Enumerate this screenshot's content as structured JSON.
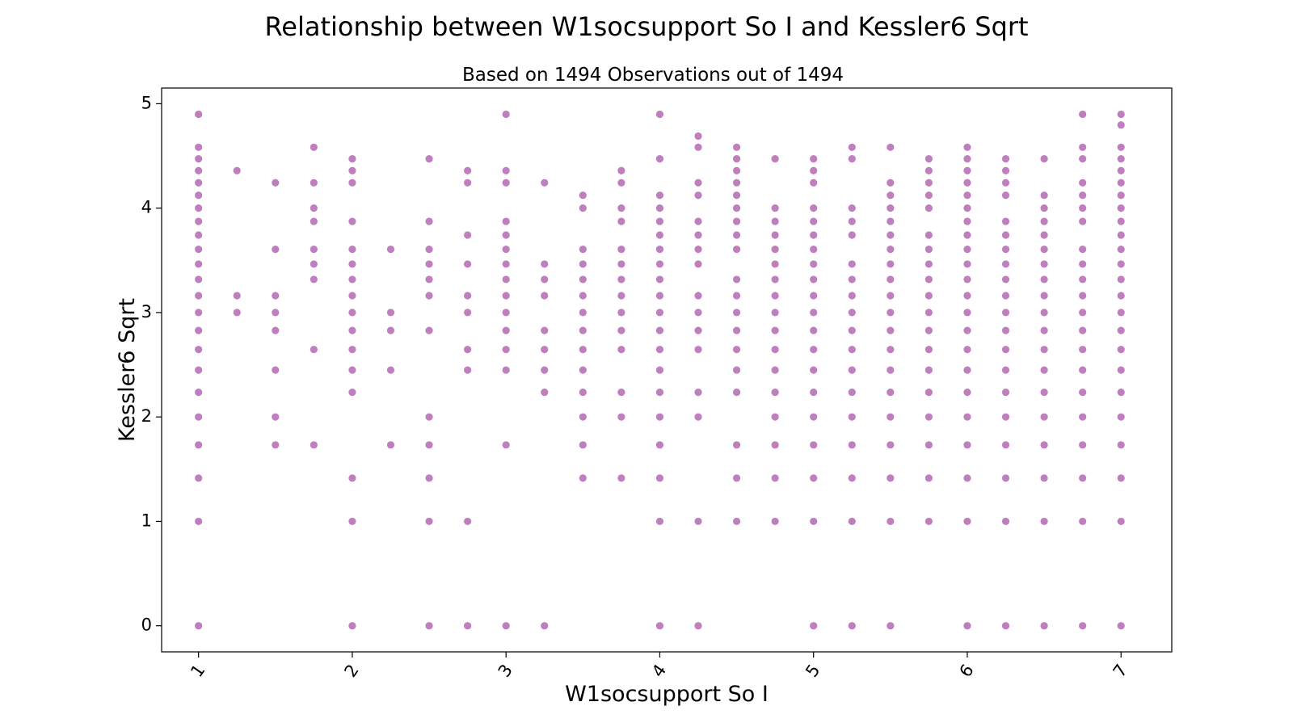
{
  "figure": {
    "title": "Relationship between W1socsupport So I and Kessler6 Sqrt"
  },
  "chart_data": {
    "type": "scatter",
    "title": "Based on 1494 Observations out of 1494",
    "xlabel": "W1socsupport So I",
    "ylabel": "Kessler6 Sqrt",
    "xlim": [
      0.76,
      7.33
    ],
    "ylim": [
      -0.25,
      5.15
    ],
    "xticks": [
      1,
      2,
      3,
      4,
      5,
      6,
      7
    ],
    "xtick_labels": [
      "1",
      "2",
      "3",
      "4",
      "5",
      "6",
      "7"
    ],
    "yticks": [
      0,
      1,
      2,
      3,
      4,
      5
    ],
    "ytick_labels": [
      "0",
      "1",
      "2",
      "3",
      "4",
      "5"
    ],
    "xtick_rotation_deg": 55,
    "grid": false,
    "legend": "none",
    "marker_color": "#800080",
    "marker_alpha": 0.5,
    "points_note": "distinct plotted positions; overlapping points appear darker",
    "columns": [
      {
        "x": 1,
        "y": [
          0,
          1,
          1.414,
          1.732,
          2,
          2.236,
          2.449,
          2.646,
          2.828,
          3,
          3.162,
          3.317,
          3.464,
          3.606,
          3.742,
          3.873,
          4,
          4.123,
          4.243,
          4.359,
          4.472,
          4.583,
          4.899
        ]
      },
      {
        "x": 1.25,
        "y": [
          3,
          3.162,
          4.359
        ]
      },
      {
        "x": 1.5,
        "y": [
          1.732,
          2,
          2.449,
          2.828,
          3,
          3.162,
          3.606,
          4.243
        ]
      },
      {
        "x": 1.75,
        "y": [
          1.732,
          2.646,
          3.317,
          3.464,
          3.606,
          3.873,
          4,
          4.243,
          4.583
        ]
      },
      {
        "x": 2,
        "y": [
          0,
          1,
          1.414,
          2.236,
          2.449,
          2.646,
          2.828,
          3,
          3.162,
          3.317,
          3.464,
          3.606,
          3.873,
          4.243,
          4.359,
          4.472
        ]
      },
      {
        "x": 2.25,
        "y": [
          1.732,
          2.449,
          2.828,
          3,
          3.606
        ]
      },
      {
        "x": 2.5,
        "y": [
          0,
          1,
          1.414,
          1.732,
          2,
          2.828,
          3.162,
          3.317,
          3.464,
          3.606,
          3.873,
          4.472
        ]
      },
      {
        "x": 2.75,
        "y": [
          0,
          1,
          2.449,
          2.646,
          3,
          3.162,
          3.464,
          3.742,
          4.243,
          4.359
        ]
      },
      {
        "x": 3,
        "y": [
          0,
          1.732,
          2.449,
          2.646,
          2.828,
          3,
          3.162,
          3.317,
          3.464,
          3.606,
          3.742,
          3.873,
          4.243,
          4.359,
          4.899
        ]
      },
      {
        "x": 3.25,
        "y": [
          0,
          2.236,
          2.449,
          2.646,
          2.828,
          3.162,
          3.317,
          3.464,
          4.243
        ]
      },
      {
        "x": 3.5,
        "y": [
          1.414,
          1.732,
          2,
          2.236,
          2.449,
          2.646,
          2.828,
          3,
          3.162,
          3.317,
          3.464,
          3.606,
          4,
          4.123
        ]
      },
      {
        "x": 3.75,
        "y": [
          1.414,
          2,
          2.236,
          2.646,
          2.828,
          3,
          3.162,
          3.317,
          3.464,
          3.606,
          3.873,
          4,
          4.243,
          4.359
        ]
      },
      {
        "x": 4,
        "y": [
          0,
          1,
          1.414,
          1.732,
          2,
          2.236,
          2.449,
          2.646,
          2.828,
          3,
          3.162,
          3.317,
          3.464,
          3.606,
          3.742,
          3.873,
          4,
          4.123,
          4.472,
          4.899
        ]
      },
      {
        "x": 4.25,
        "y": [
          0,
          1,
          2,
          2.236,
          2.646,
          2.828,
          3,
          3.162,
          3.464,
          3.606,
          3.742,
          3.873,
          4.123,
          4.243,
          4.583,
          4.69
        ]
      },
      {
        "x": 4.5,
        "y": [
          1,
          1.414,
          1.732,
          2.236,
          2.449,
          2.646,
          2.828,
          3,
          3.162,
          3.317,
          3.606,
          3.742,
          3.873,
          4,
          4.123,
          4.243,
          4.359,
          4.472,
          4.583
        ]
      },
      {
        "x": 4.75,
        "y": [
          1,
          1.414,
          1.732,
          2,
          2.236,
          2.449,
          2.646,
          2.828,
          3,
          3.162,
          3.317,
          3.464,
          3.606,
          3.742,
          3.873,
          4,
          4.472
        ]
      },
      {
        "x": 5,
        "y": [
          0,
          1,
          1.414,
          1.732,
          2,
          2.236,
          2.449,
          2.646,
          2.828,
          3,
          3.162,
          3.317,
          3.464,
          3.606,
          3.742,
          3.873,
          4,
          4.243,
          4.359,
          4.472
        ]
      },
      {
        "x": 5.25,
        "y": [
          0,
          1,
          1.414,
          1.732,
          2,
          2.236,
          2.449,
          2.646,
          2.828,
          3,
          3.162,
          3.317,
          3.464,
          3.742,
          3.873,
          4,
          4.472,
          4.583
        ]
      },
      {
        "x": 5.5,
        "y": [
          0,
          1,
          1.414,
          1.732,
          2,
          2.236,
          2.449,
          2.646,
          2.828,
          3,
          3.162,
          3.317,
          3.464,
          3.606,
          3.742,
          3.873,
          4,
          4.123,
          4.243,
          4.583
        ]
      },
      {
        "x": 5.75,
        "y": [
          1,
          1.414,
          1.732,
          2,
          2.236,
          2.449,
          2.646,
          2.828,
          3,
          3.162,
          3.317,
          3.464,
          3.606,
          3.742,
          4,
          4.123,
          4.243,
          4.359,
          4.472
        ]
      },
      {
        "x": 6,
        "y": [
          0,
          1,
          1.414,
          1.732,
          2,
          2.236,
          2.449,
          2.646,
          2.828,
          3,
          3.162,
          3.317,
          3.464,
          3.606,
          3.742,
          3.873,
          4,
          4.123,
          4.243,
          4.359,
          4.472,
          4.583
        ]
      },
      {
        "x": 6.25,
        "y": [
          0,
          1,
          1.414,
          1.732,
          2,
          2.236,
          2.449,
          2.646,
          2.828,
          3,
          3.162,
          3.317,
          3.464,
          3.606,
          3.742,
          3.873,
          4.123,
          4.243,
          4.359,
          4.472
        ]
      },
      {
        "x": 6.5,
        "y": [
          0,
          1,
          1.414,
          1.732,
          2,
          2.236,
          2.449,
          2.646,
          2.828,
          3,
          3.162,
          3.317,
          3.464,
          3.606,
          3.742,
          3.873,
          4,
          4.123,
          4.472
        ]
      },
      {
        "x": 6.75,
        "y": [
          0,
          1,
          1.414,
          1.732,
          2,
          2.236,
          2.449,
          2.646,
          2.828,
          3,
          3.162,
          3.317,
          3.464,
          3.606,
          3.873,
          4,
          4.123,
          4.243,
          4.472,
          4.583,
          4.899
        ]
      },
      {
        "x": 7,
        "y": [
          0,
          1,
          1.414,
          1.732,
          2,
          2.236,
          2.449,
          2.646,
          2.828,
          3,
          3.162,
          3.317,
          3.464,
          3.606,
          3.742,
          3.873,
          4,
          4.123,
          4.243,
          4.359,
          4.472,
          4.583,
          4.796,
          4.899
        ]
      }
    ]
  }
}
